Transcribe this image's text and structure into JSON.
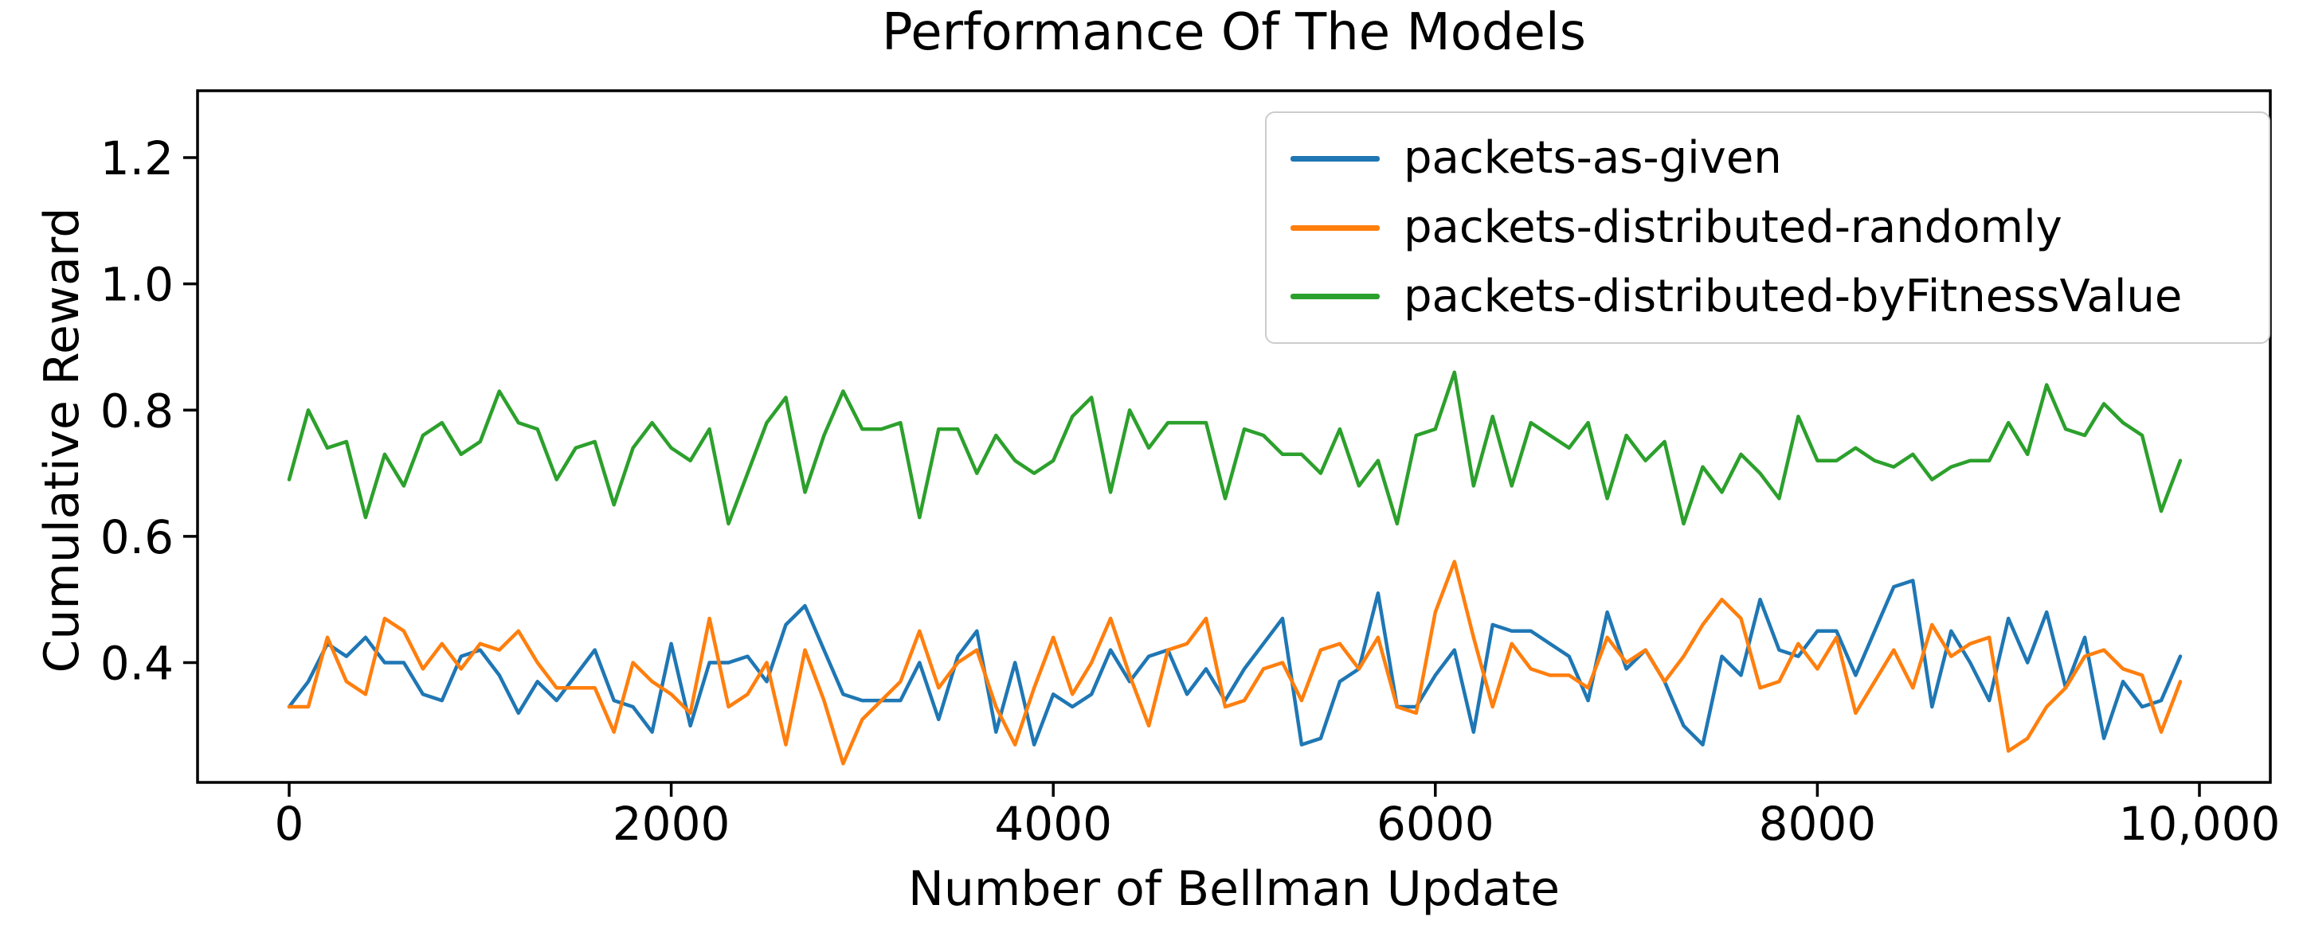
{
  "figure": {
    "title": "Performance Of The Models",
    "xlabel": "Number of Bellman Update",
    "ylabel": "Cumulative Reward"
  },
  "legend": {
    "position": "upper right",
    "items": [
      {
        "label": "packets-as-given",
        "color": "#1f77b4"
      },
      {
        "label": "packets-distributed-randomly",
        "color": "#ff7f0e"
      },
      {
        "label": "packets-distributed-byFitnessValue",
        "color": "#2ca02c"
      }
    ]
  },
  "chart_data": {
    "type": "line",
    "title": "Performance Of The Models",
    "xlabel": "Number of Bellman Update",
    "ylabel": "Cumulative Reward",
    "grid": false,
    "legend_position": "upper right",
    "xlim": [
      -480,
      10170
    ],
    "ylim": [
      0.21,
      1.31
    ],
    "xticks": {
      "values": [
        0,
        2000,
        4000,
        6000,
        8000,
        10000
      ],
      "labels": [
        "0",
        "2000",
        "4000",
        "6000",
        "8000",
        "10,000"
      ]
    },
    "yticks": {
      "values": [
        0.4,
        0.6,
        0.8,
        1.0,
        1.2
      ],
      "labels": [
        "0.4",
        "0.6",
        "0.8",
        "1.0",
        "1.2"
      ]
    },
    "x_start": 0,
    "x_step": 100,
    "n_points": 100,
    "series": [
      {
        "name": "packets-as-given",
        "color": "#1f77b4",
        "values": [
          0.33,
          0.37,
          0.43,
          0.41,
          0.44,
          0.4,
          0.4,
          0.35,
          0.34,
          0.41,
          0.42,
          0.38,
          0.32,
          0.37,
          0.34,
          0.38,
          0.42,
          0.34,
          0.33,
          0.29,
          0.43,
          0.3,
          0.4,
          0.4,
          0.41,
          0.37,
          0.46,
          0.49,
          0.42,
          0.35,
          0.34,
          0.34,
          0.34,
          0.4,
          0.31,
          0.41,
          0.45,
          0.29,
          0.4,
          0.27,
          0.35,
          0.33,
          0.35,
          0.42,
          0.37,
          0.41,
          0.42,
          0.35,
          0.39,
          0.34,
          0.39,
          0.43,
          0.47,
          0.27,
          0.28,
          0.37,
          0.39,
          0.51,
          0.33,
          0.33,
          0.38,
          0.42,
          0.29,
          0.46,
          0.45,
          0.45,
          0.43,
          0.41,
          0.34,
          0.48,
          0.39,
          0.42,
          0.37,
          0.3,
          0.27,
          0.41,
          0.38,
          0.5,
          0.42,
          0.41,
          0.45,
          0.45,
          0.38,
          0.45,
          0.52,
          0.53,
          0.33,
          0.45,
          0.4,
          0.34,
          0.47,
          0.4,
          0.48,
          0.36,
          0.44,
          0.28,
          0.37,
          0.33,
          0.34,
          0.41
        ]
      },
      {
        "name": "packets-distributed-randomly",
        "color": "#ff7f0e",
        "values": [
          0.33,
          0.33,
          0.44,
          0.37,
          0.35,
          0.47,
          0.45,
          0.39,
          0.43,
          0.39,
          0.43,
          0.42,
          0.45,
          0.4,
          0.36,
          0.36,
          0.36,
          0.29,
          0.4,
          0.37,
          0.35,
          0.32,
          0.47,
          0.33,
          0.35,
          0.4,
          0.27,
          0.42,
          0.34,
          0.24,
          0.31,
          0.34,
          0.37,
          0.45,
          0.36,
          0.4,
          0.42,
          0.33,
          0.27,
          0.36,
          0.44,
          0.35,
          0.4,
          0.47,
          0.38,
          0.3,
          0.42,
          0.43,
          0.47,
          0.33,
          0.34,
          0.39,
          0.4,
          0.34,
          0.42,
          0.43,
          0.39,
          0.44,
          0.33,
          0.32,
          0.48,
          0.56,
          0.44,
          0.33,
          0.43,
          0.39,
          0.38,
          0.38,
          0.36,
          0.44,
          0.4,
          0.42,
          0.37,
          0.41,
          0.46,
          0.5,
          0.47,
          0.36,
          0.37,
          0.43,
          0.39,
          0.44,
          0.32,
          0.37,
          0.42,
          0.36,
          0.46,
          0.41,
          0.43,
          0.44,
          0.26,
          0.28,
          0.33,
          0.36,
          0.41,
          0.42,
          0.39,
          0.38,
          0.29,
          0.37
        ]
      },
      {
        "name": "packets-distributed-byFitnessValue",
        "color": "#2ca02c",
        "values": [
          0.69,
          0.8,
          0.74,
          0.75,
          0.63,
          0.73,
          0.68,
          0.76,
          0.78,
          0.73,
          0.75,
          0.83,
          0.78,
          0.77,
          0.69,
          0.74,
          0.75,
          0.65,
          0.74,
          0.78,
          0.74,
          0.72,
          0.77,
          0.62,
          0.7,
          0.78,
          0.82,
          0.67,
          0.76,
          0.83,
          0.77,
          0.77,
          0.78,
          0.63,
          0.77,
          0.77,
          0.7,
          0.76,
          0.72,
          0.7,
          0.72,
          0.79,
          0.82,
          0.67,
          0.8,
          0.74,
          0.78,
          0.78,
          0.78,
          0.66,
          0.77,
          0.76,
          0.73,
          0.73,
          0.7,
          0.77,
          0.68,
          0.72,
          0.62,
          0.76,
          0.77,
          0.86,
          0.68,
          0.79,
          0.68,
          0.78,
          0.76,
          0.74,
          0.78,
          0.66,
          0.76,
          0.72,
          0.75,
          0.62,
          0.71,
          0.67,
          0.73,
          0.7,
          0.66,
          0.79,
          0.72,
          0.72,
          0.74,
          0.72,
          0.71,
          0.73,
          0.69,
          0.71,
          0.72,
          0.72,
          0.78,
          0.73,
          0.84,
          0.77,
          0.76,
          0.81,
          0.78,
          0.76,
          0.64,
          0.72
        ]
      }
    ]
  }
}
